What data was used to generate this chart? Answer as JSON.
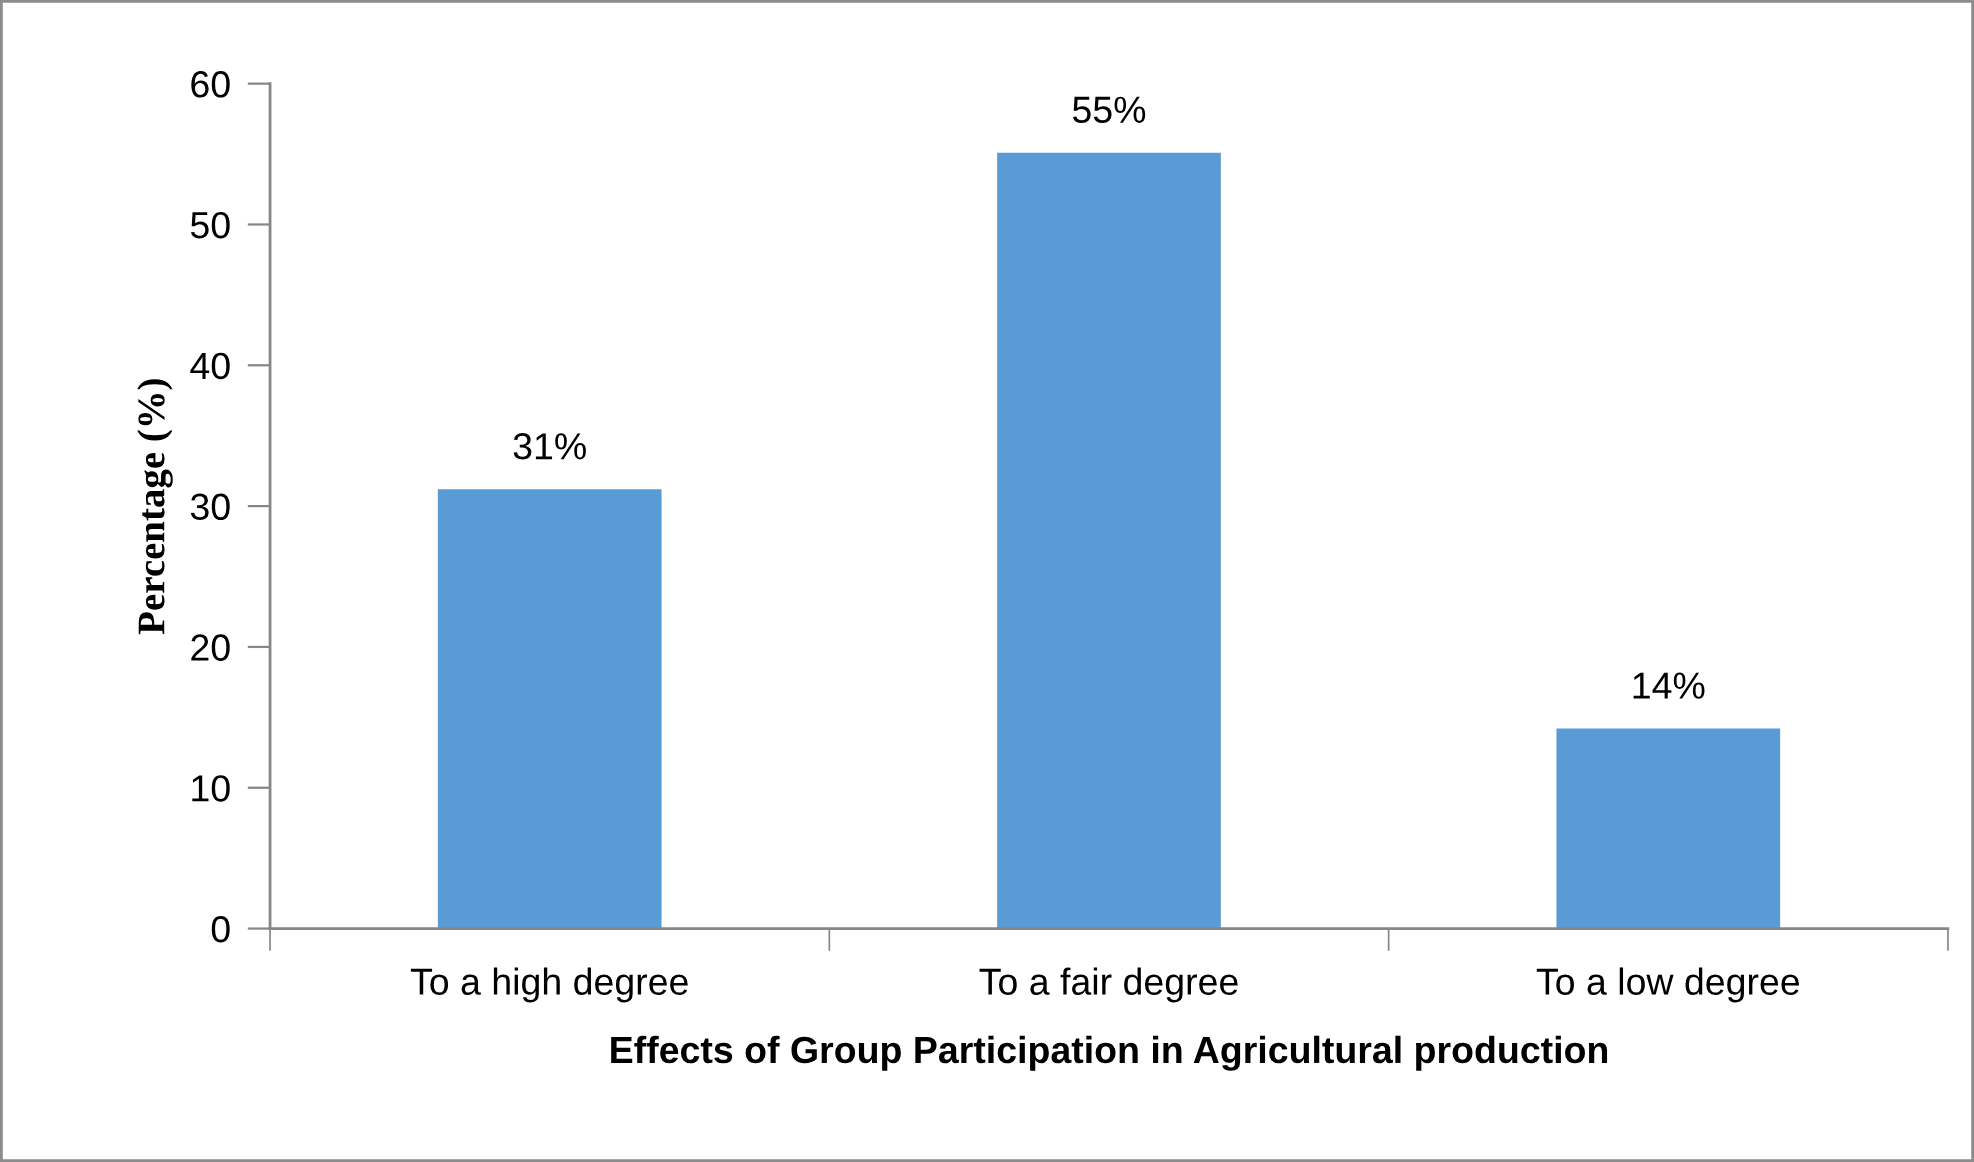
{
  "chart_data": {
    "type": "bar",
    "xlabel": "Effects of Group Participation in Agricultural production",
    "ylabel": "Percentage (%)",
    "categories": [
      "To a high degree",
      "To a fair degree",
      "To a low degree"
    ],
    "values": [
      31.2,
      55.1,
      14.2
    ],
    "value_labels": [
      "31%",
      "55%",
      "14%"
    ],
    "color": "#5b9bd5",
    "ylim": [
      0,
      60
    ],
    "yticks": [
      0,
      10,
      20,
      30,
      40,
      50,
      60
    ],
    "grid": false,
    "legend": false
  }
}
